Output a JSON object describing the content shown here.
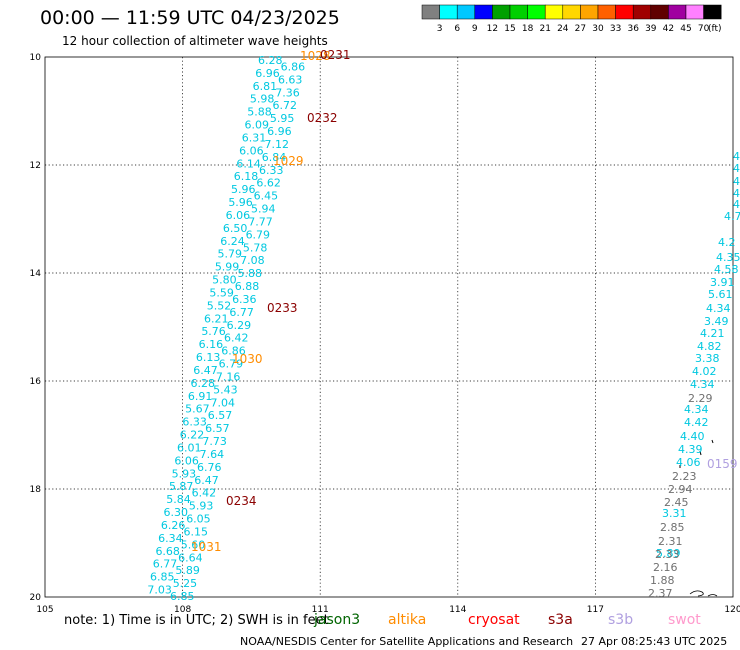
{
  "header": {
    "title": "00:00 — 11:59 UTC 04/23/2025",
    "subtitle": "12 hour collection of altimeter wave heights"
  },
  "legend": {
    "labels": [
      "3",
      "6",
      "9",
      "12",
      "15",
      "18",
      "21",
      "24",
      "27",
      "30",
      "33",
      "36",
      "39",
      "42",
      "45",
      "70"
    ],
    "unit": "(ft)",
    "colors": [
      "#808080",
      "#00ffff",
      "#00c8ff",
      "#0000ff",
      "#00a000",
      "#00d000",
      "#00ff00",
      "#ffff00",
      "#ffd700",
      "#ffa500",
      "#ff6000",
      "#ff0000",
      "#a00000",
      "#600000",
      "#a000a0",
      "#ff80ff",
      "#000000"
    ]
  },
  "axes": {
    "x_ticks": [
      "105",
      "108",
      "111",
      "114",
      "117",
      "120"
    ],
    "y_ticks": [
      "10",
      "12",
      "14",
      "16",
      "18",
      "20"
    ]
  },
  "satellites": [
    {
      "name": "jason3",
      "color": "#006400"
    },
    {
      "name": "altika",
      "color": "#ff8c00"
    },
    {
      "name": "cryosat",
      "color": "#ff0000"
    },
    {
      "name": "s3a",
      "color": "#8b0000"
    },
    {
      "name": "s3b",
      "color": "#b0a0e0"
    },
    {
      "name": "swot",
      "color": "#ff99cc"
    }
  ],
  "notes": {
    "prefix": "note: 1) Time is in UTC; 2) SWH is in feet",
    "credit": "NOAA/NESDIS Center for Satellite Applications and Research",
    "timestamp": "27 Apr 08:25:43 UTC 2025"
  },
  "track_values_left": [
    "6.28",
    "6.86",
    "6.96",
    "6.63",
    "6.81",
    "7.36",
    "5.98",
    "6.72",
    "5.88",
    "5.95",
    "6.09",
    "6.96",
    "6.31",
    "7.12",
    "6.06",
    "6.84",
    "6.14",
    "6.33",
    "6.18",
    "6.62",
    "5.96",
    "6.45",
    "5.96",
    "5.94",
    "6.06",
    "7.77",
    "6.50",
    "6.79",
    "6.24",
    "5.78",
    "5.79",
    "7.08",
    "5.99",
    "5.88",
    "5.80",
    "6.88",
    "5.59",
    "6.36",
    "5.52",
    "6.77",
    "6.21",
    "6.29",
    "5.76",
    "6.42",
    "6.16",
    "6.86",
    "6.13",
    "6.79",
    "6.47",
    "7.16",
    "6.28",
    "5.43",
    "6.91",
    "7.04",
    "5.67",
    "6.57",
    "6.33",
    "6.57",
    "6.22",
    "7.73",
    "6.01",
    "7.64",
    "6.06",
    "6.76",
    "5.93",
    "6.47",
    "5.87",
    "6.42",
    "5.84",
    "5.93",
    "6.30",
    "6.05",
    "6.26",
    "6.15",
    "6.34",
    "5.60",
    "6.68",
    "6.64",
    "6.77",
    "5.89",
    "6.85",
    "5.25",
    "7.03",
    "6.85"
  ],
  "track_values_right_cyan": [
    "4.7",
    "4.2",
    "4.35",
    "4.58",
    "3.91",
    "5.61",
    "4.34",
    "3.49",
    "4.21",
    "4.82",
    "3.38",
    "4.02",
    "4.34",
    "4.34",
    "4.42",
    "4.40",
    "4.39",
    "4.06",
    "3.31",
    "5.89"
  ],
  "track_values_right_gray": [
    "2.29",
    "2.23",
    "2.94",
    "2.45",
    "2.85",
    "2.31",
    "2.33",
    "2.16",
    "1.88",
    "2.37"
  ],
  "time_labels": [
    {
      "text": "1028",
      "color": "#ff8c00"
    },
    {
      "text": "0231",
      "color": "#8b0000"
    },
    {
      "text": "0232",
      "color": "#8b0000"
    },
    {
      "text": "1029",
      "color": "#ff8c00"
    },
    {
      "text": "0233",
      "color": "#8b0000"
    },
    {
      "text": "1030",
      "color": "#ff8c00"
    },
    {
      "text": "0234",
      "color": "#8b0000"
    },
    {
      "text": "1031",
      "color": "#ff8c00"
    },
    {
      "text": "0159",
      "color": "#b0a0e0"
    }
  ]
}
